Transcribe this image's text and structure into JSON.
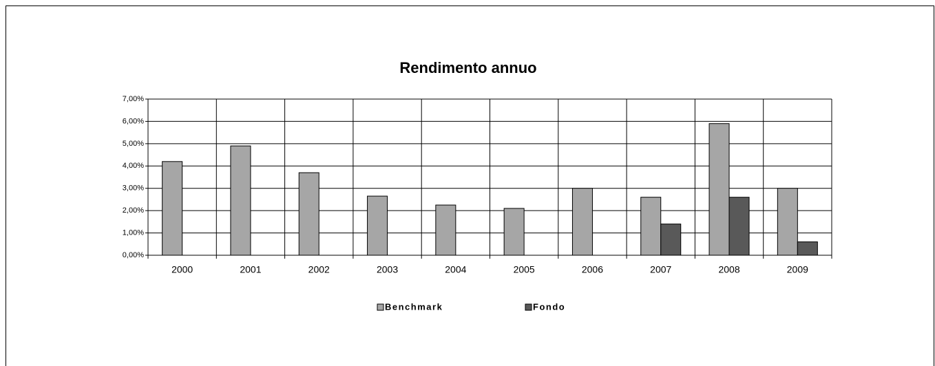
{
  "chart_data": {
    "type": "bar",
    "title": "Rendimento annuo",
    "categories": [
      "2000",
      "2001",
      "2002",
      "2003",
      "2004",
      "2005",
      "2006",
      "2007",
      "2008",
      "2009"
    ],
    "series": [
      {
        "name": "Benchmark",
        "color": "#a6a6a6",
        "values": [
          4.2,
          4.9,
          3.7,
          2.65,
          2.25,
          2.1,
          3.0,
          2.6,
          5.9,
          3.0
        ]
      },
      {
        "name": "Fondo",
        "color": "#595959",
        "values": [
          null,
          null,
          null,
          null,
          null,
          null,
          null,
          1.4,
          2.6,
          0.6
        ]
      }
    ],
    "ylim": [
      0,
      7
    ],
    "yticks": [
      {
        "value": 0,
        "label": "0,00%"
      },
      {
        "value": 1,
        "label": "1,00%"
      },
      {
        "value": 2,
        "label": "2,00%"
      },
      {
        "value": 3,
        "label": "3,00%"
      },
      {
        "value": 4,
        "label": "4,00%"
      },
      {
        "value": 5,
        "label": "5,00%"
      },
      {
        "value": 6,
        "label": "6,00%"
      },
      {
        "value": 7,
        "label": "7,00%"
      }
    ],
    "grid": true,
    "legend": "bottom"
  }
}
